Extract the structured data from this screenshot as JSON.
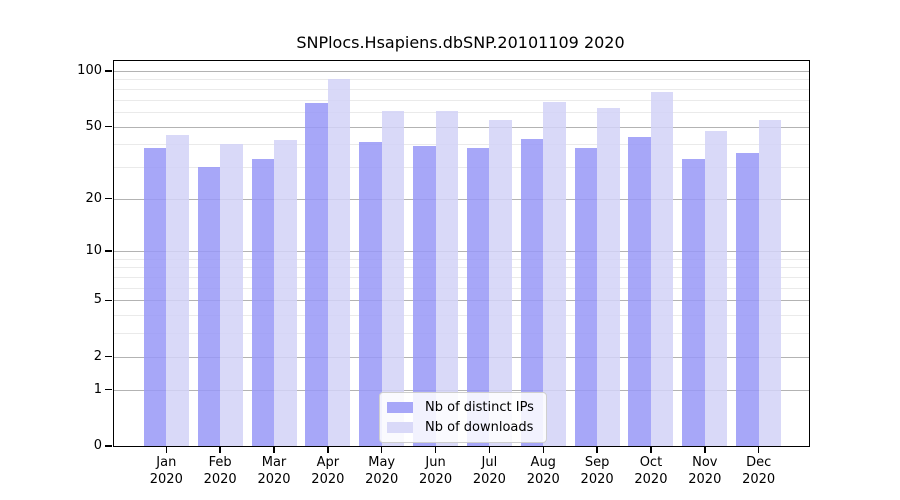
{
  "chart_data": {
    "type": "bar",
    "title": "SNPlocs.Hsapiens.dbSNP.20101109 2020",
    "year": "2020",
    "categories": [
      "Jan",
      "Feb",
      "Mar",
      "Apr",
      "May",
      "Jun",
      "Jul",
      "Aug",
      "Sep",
      "Oct",
      "Nov",
      "Dec"
    ],
    "series": [
      {
        "name": "Nb of distinct IPs",
        "color": "#9898f7",
        "values": [
          38,
          30,
          33,
          67,
          41,
          39,
          38,
          43,
          38,
          44,
          33,
          36
        ]
      },
      {
        "name": "Nb of downloads",
        "color": "#d2d2f7",
        "values": [
          45,
          40,
          42,
          90,
          61,
          61,
          54,
          68,
          63,
          77,
          47,
          54
        ]
      }
    ],
    "bar_opacity": "0.85",
    "yscale": "log1p",
    "ylim": [
      0,
      100
    ],
    "y_major_ticks": [
      0,
      1,
      2,
      5,
      10,
      20,
      50,
      100
    ],
    "y_minor_gridlines": [
      3,
      4,
      6,
      7,
      8,
      9,
      30,
      40,
      60,
      70,
      80,
      90
    ],
    "xlabel": "",
    "ylabel": "",
    "grid": "on",
    "legend_position": "inside-bottom-center",
    "colors": {
      "major_grid": "#b3b3b3",
      "minor_grid": "#eaeaea",
      "axis_frame": "#000000",
      "bar_distinct_ips": "#a8a8f8",
      "bar_downloads": "#d9d9f8"
    }
  }
}
